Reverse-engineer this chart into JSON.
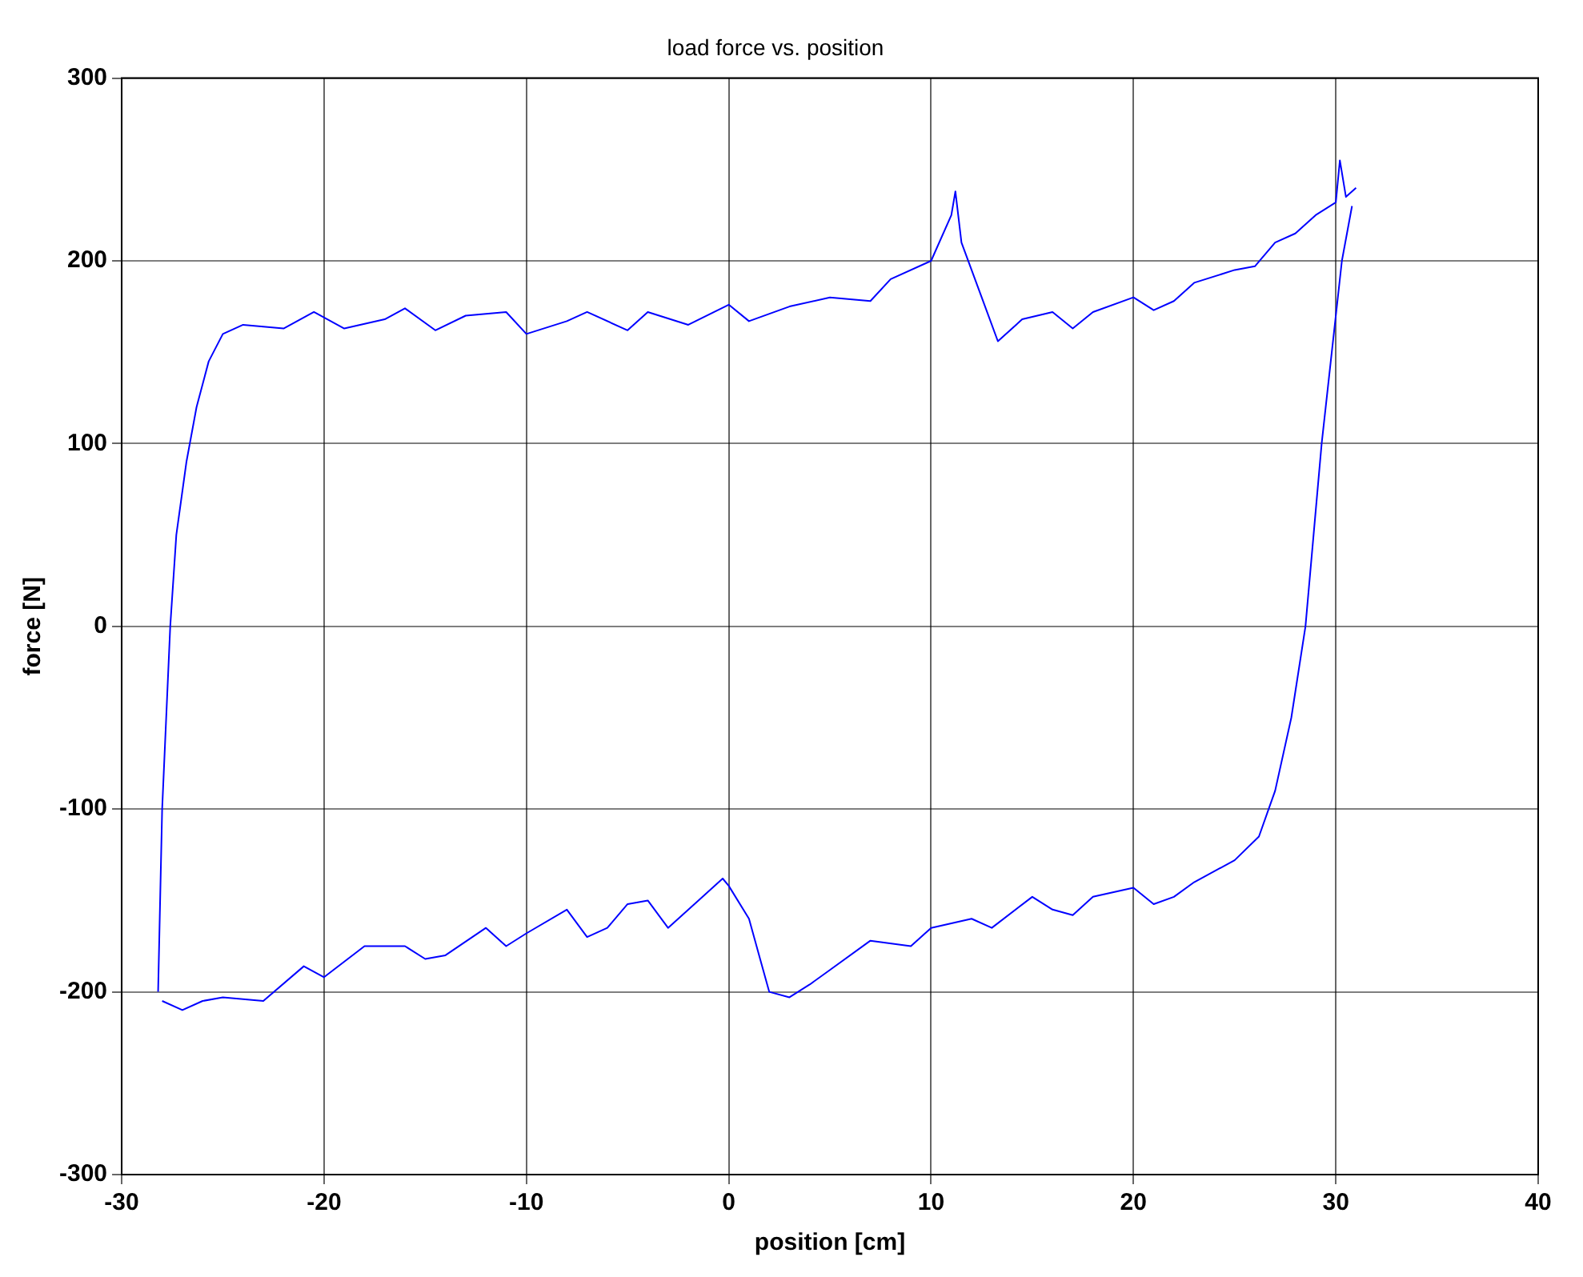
{
  "chart_data": {
    "type": "line",
    "title": "load force vs. position",
    "xlabel": "position [cm]",
    "ylabel": "force [N]",
    "xlim": [
      -30,
      40
    ],
    "xticks": [
      -30,
      -20,
      -10,
      0,
      10,
      20,
      30,
      40
    ],
    "ylim": [
      -300,
      300
    ],
    "yticks": [
      -300,
      -200,
      -100,
      0,
      100,
      200,
      300
    ],
    "grid": true,
    "legend": false,
    "marker": "none",
    "line_style": "solid",
    "series": [
      {
        "color": "#0000ff",
        "x": [
          -28.2,
          -28.0,
          -27.6,
          -27.3,
          -26.8,
          -26.3,
          -25.7,
          -25,
          -24,
          -22,
          -20.5,
          -19,
          -17,
          -16,
          -14.5,
          -13,
          -11,
          -10,
          -8,
          -7,
          -5,
          -4,
          -2,
          0,
          1,
          3,
          5,
          7,
          8,
          10,
          11,
          11.2,
          11.5,
          12.5,
          13.3,
          14.5,
          16,
          17,
          18,
          20,
          21,
          22,
          23,
          25,
          26,
          27,
          28,
          29,
          30,
          30.2,
          30.5,
          31
        ],
        "values": [
          -200,
          -100,
          0,
          50,
          90,
          120,
          145,
          160,
          165,
          163,
          172,
          163,
          168,
          174,
          162,
          170,
          172,
          160,
          167,
          172,
          162,
          172,
          165,
          176,
          167,
          175,
          180,
          178,
          190,
          200,
          225,
          238,
          210,
          180,
          156,
          168,
          172,
          163,
          172,
          180,
          173,
          178,
          188,
          195,
          197,
          210,
          215,
          225,
          232,
          255,
          235,
          240
        ]
      },
      {
        "color": "#0000ff",
        "x": [
          -28,
          -27,
          -26,
          -25,
          -23,
          -21,
          -20,
          -18,
          -16,
          -15,
          -14,
          -12,
          -11,
          -10,
          -8,
          -7,
          -6,
          -5,
          -4,
          -3,
          -1.5,
          -0.3,
          0,
          1,
          1.5,
          2,
          3,
          4,
          5,
          7,
          9,
          10,
          12,
          13,
          15,
          16,
          17,
          18,
          20,
          21,
          22,
          23,
          25,
          26.2,
          27,
          27.8,
          28.5,
          28.9,
          29.3,
          29.8,
          30.3,
          30.8
        ],
        "values": [
          -205,
          -210,
          -205,
          -203,
          -205,
          -186,
          -192,
          -175,
          -175,
          -182,
          -180,
          -165,
          -175,
          -168,
          -155,
          -170,
          -165,
          -152,
          -150,
          -165,
          -150,
          -138,
          -142,
          -160,
          -180,
          -200,
          -203,
          -196,
          -188,
          -172,
          -175,
          -165,
          -160,
          -165,
          -148,
          -155,
          -158,
          -148,
          -143,
          -152,
          -148,
          -140,
          -128,
          -115,
          -90,
          -50,
          0,
          50,
          100,
          150,
          200,
          230
        ]
      }
    ]
  }
}
